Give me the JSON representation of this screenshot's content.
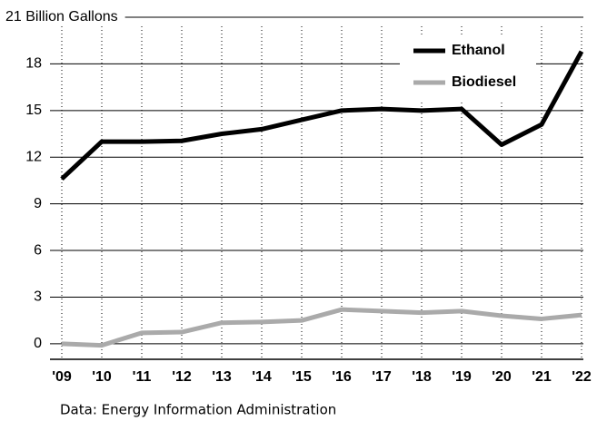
{
  "chart_data": {
    "type": "line",
    "categories": [
      "'09",
      "'10",
      "'11",
      "'12",
      "'13",
      "'14",
      "'15",
      "'16",
      "'17",
      "'18",
      "'19",
      "'20",
      "'21",
      "'22"
    ],
    "series": [
      {
        "name": "Ethanol",
        "color": "#000000",
        "values": [
          10.6,
          13.0,
          13.0,
          13.05,
          13.5,
          13.8,
          14.4,
          15.0,
          15.1,
          15.0,
          15.1,
          12.8,
          14.1,
          18.8
        ]
      },
      {
        "name": "Biodiesel",
        "color": "#aaaaaa",
        "values": [
          0,
          -0.1,
          0.7,
          0.75,
          1.35,
          1.4,
          1.5,
          2.2,
          2.1,
          2.0,
          2.1,
          1.8,
          1.6,
          1.85
        ]
      }
    ],
    "ylim": [
      -1,
      21
    ],
    "yticks": [
      0,
      3,
      6,
      9,
      12,
      15,
      18,
      {
        "value": 21,
        "label": "21 Billion Gallons"
      }
    ],
    "grid": true,
    "legend": "top-right",
    "source": "Data: Energy Information Administration"
  }
}
